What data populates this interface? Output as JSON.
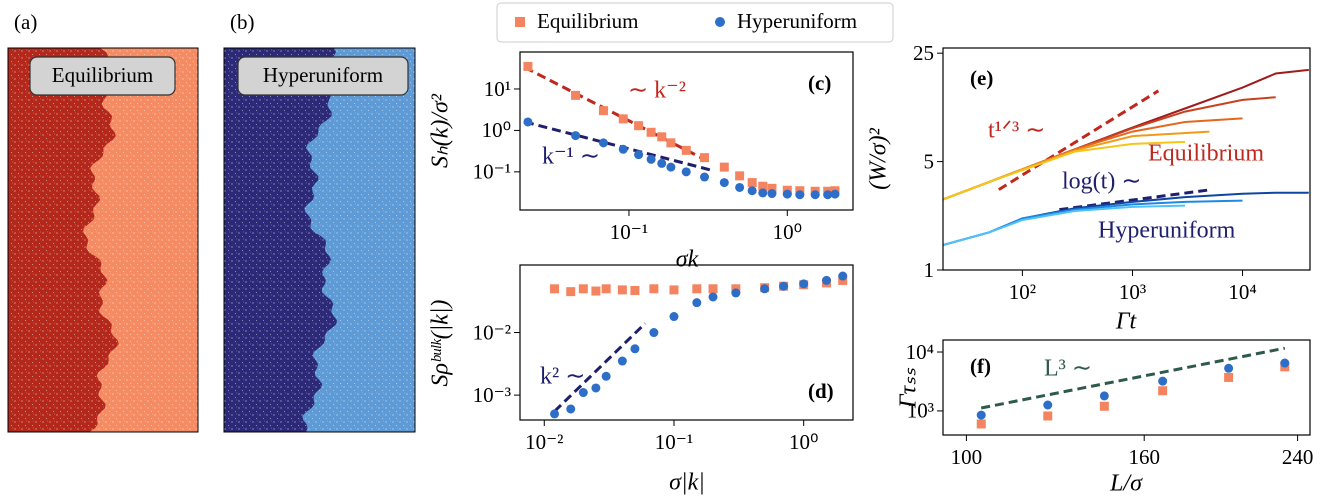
{
  "panels": [
    {
      "label": "(a)",
      "title": "Equilibrium",
      "colors": [
        "#b3281b",
        "#f58b62"
      ]
    },
    {
      "label": "(b)",
      "title": "Hyperuniform",
      "colors": [
        "#2c2a78",
        "#5e9ad6"
      ]
    }
  ],
  "chart_data": [
    {
      "type": "scatter",
      "panel_label": "(c)",
      "xlabel": "σk",
      "ylabel": "Sₕ(k)/σ²",
      "xlog": true,
      "ylog": true,
      "xlim": [
        0.0205,
        2.6
      ],
      "ylim": [
        0.012,
        78
      ],
      "xticks": [
        {
          "value": 0.1,
          "label": "10⁻¹"
        },
        {
          "value": 1,
          "label": "10⁰"
        }
      ],
      "yticks": [
        {
          "value": 0.1,
          "label": "10⁻¹"
        },
        {
          "value": 1,
          "label": "10⁰"
        },
        {
          "value": 10,
          "label": "10¹"
        }
      ],
      "series": [
        {
          "name": "Equilibrium",
          "color": "#f4845f",
          "marker": "square",
          "x": [
            0.023,
            0.046,
            0.069,
            0.092,
            0.115,
            0.138,
            0.161,
            0.184,
            0.23,
            0.3,
            0.4,
            0.5,
            0.6,
            0.7,
            0.8,
            1.0,
            1.2,
            1.5,
            1.8,
            2.0
          ],
          "values": [
            35,
            7,
            3,
            1.9,
            1.3,
            0.9,
            0.7,
            0.5,
            0.33,
            0.22,
            0.13,
            0.08,
            0.055,
            0.045,
            0.04,
            0.036,
            0.035,
            0.034,
            0.034,
            0.035
          ]
        },
        {
          "name": "Hyperuniform",
          "color": "#2d6ec8",
          "marker": "circle",
          "x": [
            0.023,
            0.046,
            0.069,
            0.092,
            0.115,
            0.138,
            0.161,
            0.184,
            0.23,
            0.3,
            0.4,
            0.5,
            0.6,
            0.7,
            0.8,
            1.0,
            1.2,
            1.5,
            1.8,
            2.0
          ],
          "values": [
            1.6,
            0.75,
            0.5,
            0.35,
            0.26,
            0.2,
            0.16,
            0.13,
            0.1,
            0.075,
            0.055,
            0.042,
            0.035,
            0.031,
            0.03,
            0.029,
            0.028,
            0.028,
            0.028,
            0.029
          ]
        }
      ],
      "fits": [
        {
          "color": "#c0281e",
          "x": [
            0.022,
            0.3
          ],
          "values": [
            33,
            0.2
          ]
        },
        {
          "color": "#1f1f6e",
          "x": [
            0.022,
            0.33
          ],
          "values": [
            1.6,
            0.11
          ]
        }
      ],
      "annotations": [
        {
          "text": "∼ k⁻²",
          "color": "#c0281e"
        },
        {
          "text": "k⁻¹ ∼",
          "color": "#1f1f6e"
        }
      ]
    },
    {
      "type": "scatter",
      "panel_label": "(d)",
      "xlabel": "σ|k|",
      "ylabel": "Sρᵇᵘˡᵏ(|k|)",
      "xlog": true,
      "ylog": true,
      "xlim": [
        0.0065,
        2.4
      ],
      "ylim": [
        0.0004,
        0.12
      ],
      "xticks": [
        {
          "value": 0.01,
          "label": "10⁻²"
        },
        {
          "value": 0.1,
          "label": "10⁻¹"
        },
        {
          "value": 1,
          "label": "10⁰"
        }
      ],
      "yticks": [
        {
          "value": 0.001,
          "label": "10⁻³"
        },
        {
          "value": 0.01,
          "label": "10⁻²"
        }
      ],
      "series": [
        {
          "color": "#f4845f",
          "marker": "square",
          "x": [
            0.012,
            0.016,
            0.02,
            0.025,
            0.03,
            0.04,
            0.05,
            0.07,
            0.1,
            0.15,
            0.2,
            0.3,
            0.5,
            0.7,
            1,
            1.5,
            2
          ],
          "values": [
            0.05,
            0.045,
            0.05,
            0.046,
            0.05,
            0.048,
            0.047,
            0.05,
            0.048,
            0.05,
            0.05,
            0.05,
            0.052,
            0.055,
            0.058,
            0.062,
            0.068
          ]
        },
        {
          "color": "#2d6ec8",
          "marker": "circle",
          "x": [
            0.012,
            0.016,
            0.02,
            0.025,
            0.03,
            0.04,
            0.05,
            0.07,
            0.1,
            0.15,
            0.2,
            0.3,
            0.5,
            0.7,
            1,
            1.5,
            2
          ],
          "values": [
            0.0005,
            0.0006,
            0.0011,
            0.0013,
            0.002,
            0.0035,
            0.0055,
            0.01,
            0.018,
            0.03,
            0.037,
            0.043,
            0.05,
            0.055,
            0.06,
            0.068,
            0.08
          ]
        }
      ],
      "fits": [
        {
          "color": "#1f1f6e",
          "x": [
            0.012,
            0.06
          ],
          "values": [
            0.00055,
            0.014
          ]
        }
      ],
      "annotations": [
        {
          "text": "k² ∼",
          "color": "#1f1f6e"
        }
      ]
    },
    {
      "type": "line",
      "panel_label": "(e)",
      "xlabel": "Γt",
      "ylabel": "(W/σ)²",
      "xlog": true,
      "ylog": true,
      "xlim": [
        19,
        41000
      ],
      "ylim": [
        1,
        27
      ],
      "xticks": [
        {
          "value": 100,
          "label": "10²"
        },
        {
          "value": 1000,
          "label": "10³"
        },
        {
          "value": 10000,
          "label": "10⁴"
        }
      ],
      "yticks": [
        1,
        5,
        25
      ],
      "series": [
        {
          "color": "#a01c1c",
          "x": [
            19,
            50,
            100,
            300,
            1000,
            3000,
            10000,
            20000,
            40000
          ],
          "values": [
            2.85,
            3.7,
            4.46,
            6.0,
            8.3,
            11.0,
            15.0,
            18.5,
            19.5
          ]
        },
        {
          "color": "#c9401e",
          "x": [
            19,
            50,
            100,
            300,
            1000,
            3000,
            10000,
            20000
          ],
          "values": [
            2.85,
            3.7,
            4.46,
            6.0,
            8.2,
            10.5,
            12.5,
            13.0
          ]
        },
        {
          "color": "#e2681c",
          "x": [
            19,
            50,
            100,
            300,
            1000,
            3000,
            10000
          ],
          "values": [
            2.85,
            3.7,
            4.46,
            6.0,
            7.8,
            9.0,
            9.5
          ]
        },
        {
          "color": "#f09a1a",
          "x": [
            19,
            50,
            100,
            300,
            1000,
            5000
          ],
          "values": [
            2.85,
            3.7,
            4.46,
            5.9,
            7.3,
            7.8
          ]
        },
        {
          "color": "#f5c518",
          "x": [
            19,
            50,
            100,
            300,
            1000,
            3000
          ],
          "values": [
            2.85,
            3.7,
            4.4,
            5.8,
            6.5,
            6.7
          ]
        },
        {
          "color": "#0d47a1",
          "x": [
            19,
            50,
            100,
            300,
            1000,
            3000,
            10000,
            20000,
            40000
          ],
          "values": [
            1.45,
            1.75,
            2.15,
            2.5,
            2.75,
            2.95,
            3.1,
            3.15,
            3.15
          ]
        },
        {
          "color": "#1e88e5",
          "x": [
            19,
            50,
            100,
            300,
            1000,
            3000,
            10000
          ],
          "values": [
            1.45,
            1.75,
            2.15,
            2.45,
            2.65,
            2.75,
            2.8
          ]
        },
        {
          "color": "#4fc3f7",
          "x": [
            19,
            50,
            100,
            300,
            1000,
            3000
          ],
          "values": [
            1.45,
            1.75,
            2.1,
            2.4,
            2.55,
            2.6
          ]
        }
      ],
      "fits": [
        {
          "color": "#c0281e",
          "x": [
            61,
            1720
          ],
          "values": [
            3.3,
            14.3
          ]
        },
        {
          "color": "#1f1f6e",
          "x": [
            217,
            5230
          ],
          "values": [
            2.45,
            3.3
          ]
        }
      ],
      "annotations": [
        {
          "text": "t¹ᐟ³ ∼",
          "color": "#c0281e"
        },
        {
          "text": "log(t) ∼",
          "color": "#1f1f6e"
        },
        {
          "text": "Equilibrium",
          "color": "#c0281e"
        },
        {
          "text": "Hyperuniform",
          "color": "#1f1f6e"
        }
      ]
    },
    {
      "type": "scatter",
      "panel_label": "(f)",
      "xlabel": "L/σ",
      "ylabel": "Γτₛₛ",
      "xlog": true,
      "ylog": true,
      "xlim": [
        94,
        248
      ],
      "ylim": [
        390,
        16000
      ],
      "xticks": [
        100,
        160,
        240
      ],
      "yticks": [
        {
          "value": 1000,
          "label": "10³"
        },
        {
          "value": 10000,
          "label": "10⁴"
        }
      ],
      "series": [
        {
          "color": "#f4845f",
          "marker": "square",
          "x": [
            104,
            124,
            144,
            168,
            200,
            232
          ],
          "values": [
            600,
            820,
            1200,
            2200,
            3700,
            5600
          ]
        },
        {
          "color": "#2d6ec8",
          "marker": "circle",
          "x": [
            104,
            124,
            144,
            168,
            200,
            232
          ],
          "values": [
            850,
            1260,
            1800,
            3200,
            5300,
            6500
          ]
        }
      ],
      "fits": [
        {
          "color": "#2e5a4a",
          "x": [
            104,
            232
          ],
          "values": [
            1120,
            11600
          ]
        }
      ],
      "annotations": [
        {
          "text": "L³ ∼",
          "color": "#2e5a4a"
        }
      ]
    }
  ]
}
